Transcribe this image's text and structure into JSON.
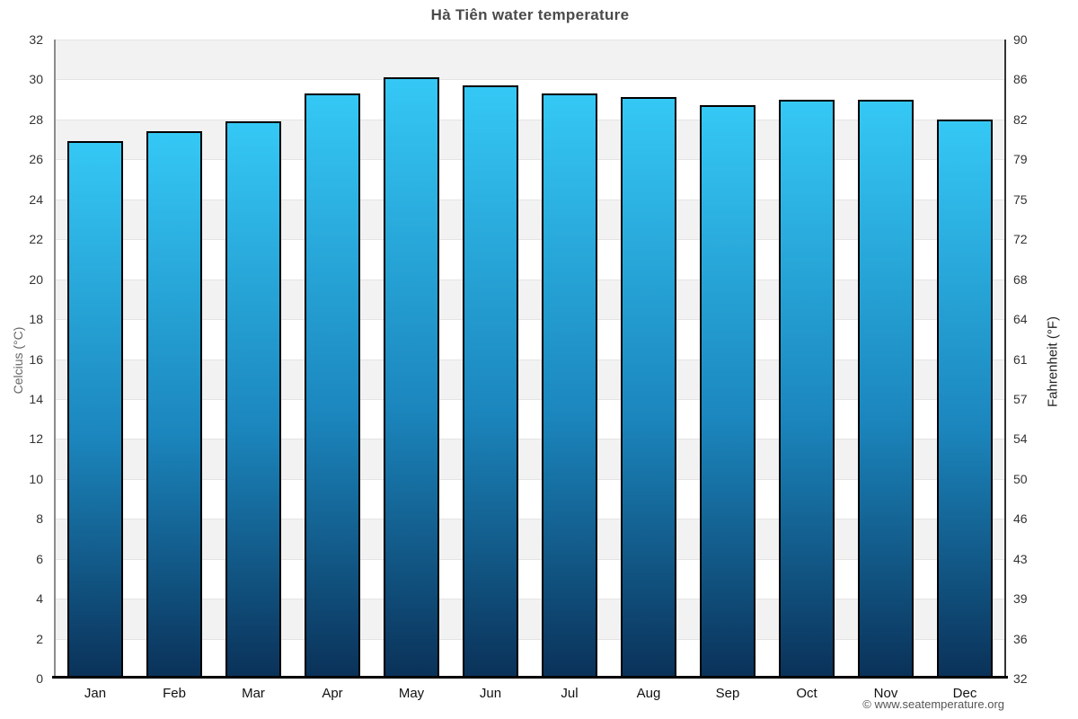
{
  "page": {
    "footer": "© www.seatemperature.org"
  },
  "chart_data": {
    "type": "bar",
    "title": "Hà Tiên water temperature",
    "categories": [
      "Jan",
      "Feb",
      "Mar",
      "Apr",
      "May",
      "Jun",
      "Jul",
      "Aug",
      "Sep",
      "Oct",
      "Nov",
      "Dec"
    ],
    "values": [
      26.9,
      27.4,
      27.9,
      29.3,
      30.1,
      29.7,
      29.3,
      29.1,
      28.7,
      29.0,
      29.0,
      28.0
    ],
    "values_unit": "°C",
    "xlabel": "",
    "ylabel_left": "Celcius (°C)",
    "ylabel_right": "Fahrenheit (°F)",
    "ylim": [
      0,
      32
    ],
    "celsius_ticks": [
      0,
      2,
      4,
      6,
      8,
      10,
      12,
      14,
      16,
      18,
      20,
      22,
      24,
      26,
      28,
      30,
      32
    ],
    "fahrenheit_tick_labels": [
      "32",
      "36",
      "39",
      "43",
      "46",
      "50",
      "54",
      "57",
      "61",
      "64",
      "68",
      "72",
      "75",
      "79",
      "82",
      "86",
      "90"
    ],
    "grid": "horizontal-bands",
    "legend": "none",
    "colors": {
      "bar_gradient_top": "#35c8f5",
      "bar_gradient_bottom": "#0a3158",
      "bar_border": "#000000",
      "band_gray": "#f2f2f2",
      "band_white": "#ffffff",
      "title_text": "#4a4a4a"
    }
  }
}
